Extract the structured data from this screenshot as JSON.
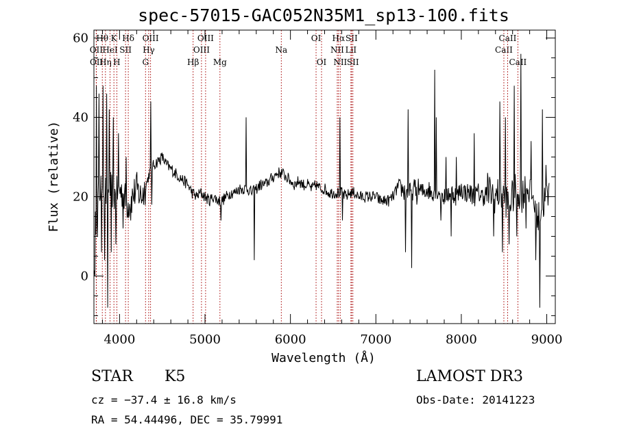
{
  "chart_data": {
    "type": "line",
    "title": "spec-57015-GAC052N35M1_sp13-100.fits",
    "xlabel": "Wavelength (Å)",
    "ylabel": "Flux (relative)",
    "xlim": [
      3700,
      9100
    ],
    "ylim": [
      -12,
      62
    ],
    "xticks": [
      4000,
      5000,
      6000,
      7000,
      8000,
      9000
    ],
    "yticks": [
      0,
      20,
      40,
      60
    ],
    "lines": [
      {
        "label": "Hθ",
        "wl": 3798,
        "row": 0
      },
      {
        "label": "OII",
        "wl": 3727,
        "row": 1
      },
      {
        "label": "OII",
        "wl": 3729,
        "row": 2
      },
      {
        "label": "Hη",
        "wl": 3835,
        "row": 2
      },
      {
        "label": "HeI",
        "wl": 3889,
        "row": 1
      },
      {
        "label": "K",
        "wl": 3934,
        "row": 0
      },
      {
        "label": "H",
        "wl": 3968,
        "row": 2
      },
      {
        "label": "SII",
        "wl": 4070,
        "row": 1
      },
      {
        "label": "Hδ",
        "wl": 4102,
        "row": 0
      },
      {
        "label": "G",
        "wl": 4304,
        "row": 2
      },
      {
        "label": "Hγ",
        "wl": 4341,
        "row": 1
      },
      {
        "label": "OIII",
        "wl": 4363,
        "row": 0
      },
      {
        "label": "Hβ",
        "wl": 4861,
        "row": 2
      },
      {
        "label": "OIII",
        "wl": 4959,
        "row": 1
      },
      {
        "label": "OIII",
        "wl": 5007,
        "row": 0
      },
      {
        "label": "Mg",
        "wl": 5175,
        "row": 2
      },
      {
        "label": "Na",
        "wl": 5893,
        "row": 1
      },
      {
        "label": "OI",
        "wl": 6300,
        "row": 0
      },
      {
        "label": "OI",
        "wl": 6364,
        "row": 2
      },
      {
        "label": "NII",
        "wl": 6548,
        "row": 1
      },
      {
        "label": "Hα",
        "wl": 6563,
        "row": 0
      },
      {
        "label": "NII",
        "wl": 6583,
        "row": 2
      },
      {
        "label": "LiI",
        "wl": 6708,
        "row": 1
      },
      {
        "label": "SII",
        "wl": 6716,
        "row": 0
      },
      {
        "label": "SII",
        "wl": 6731,
        "row": 2
      },
      {
        "label": "CaII",
        "wl": 8498,
        "row": 1
      },
      {
        "label": "CaII",
        "wl": 8542,
        "row": 0
      },
      {
        "label": "CaII",
        "wl": 8662,
        "row": 2
      }
    ],
    "spectrum_knots": [
      [
        3700,
        2
      ],
      [
        3720,
        14
      ],
      [
        3750,
        20
      ],
      [
        3800,
        24
      ],
      [
        3850,
        20
      ],
      [
        3900,
        22
      ],
      [
        3950,
        20
      ],
      [
        4000,
        22
      ],
      [
        4050,
        20
      ],
      [
        4100,
        18
      ],
      [
        4150,
        20
      ],
      [
        4200,
        22
      ],
      [
        4250,
        20
      ],
      [
        4300,
        22
      ],
      [
        4350,
        26
      ],
      [
        4400,
        28
      ],
      [
        4450,
        29
      ],
      [
        4500,
        30
      ],
      [
        4550,
        28
      ],
      [
        4600,
        27
      ],
      [
        4650,
        26
      ],
      [
        4700,
        25
      ],
      [
        4750,
        24
      ],
      [
        4800,
        23
      ],
      [
        4850,
        21
      ],
      [
        4900,
        20
      ],
      [
        4950,
        21
      ],
      [
        5000,
        20
      ],
      [
        5050,
        19
      ],
      [
        5100,
        20
      ],
      [
        5150,
        19
      ],
      [
        5200,
        19
      ],
      [
        5250,
        20
      ],
      [
        5300,
        21
      ],
      [
        5350,
        21
      ],
      [
        5400,
        22
      ],
      [
        5450,
        22
      ],
      [
        5500,
        22
      ],
      [
        5550,
        21
      ],
      [
        5600,
        22
      ],
      [
        5650,
        23
      ],
      [
        5700,
        23
      ],
      [
        5750,
        24
      ],
      [
        5800,
        25
      ],
      [
        5850,
        26
      ],
      [
        5900,
        26
      ],
      [
        5950,
        25
      ],
      [
        6000,
        24
      ],
      [
        6050,
        23
      ],
      [
        6100,
        24
      ],
      [
        6150,
        23
      ],
      [
        6200,
        23
      ],
      [
        6250,
        22
      ],
      [
        6300,
        23
      ],
      [
        6350,
        22
      ],
      [
        6400,
        22
      ],
      [
        6450,
        21
      ],
      [
        6500,
        21
      ],
      [
        6550,
        21
      ],
      [
        6600,
        21
      ],
      [
        6650,
        20
      ],
      [
        6700,
        21
      ],
      [
        6750,
        21
      ],
      [
        6800,
        20
      ],
      [
        6850,
        20
      ],
      [
        6900,
        20
      ],
      [
        6950,
        20
      ],
      [
        7000,
        20
      ],
      [
        7050,
        19
      ],
      [
        7100,
        19
      ],
      [
        7150,
        19
      ],
      [
        7200,
        20
      ],
      [
        7250,
        22
      ],
      [
        7300,
        22
      ],
      [
        7350,
        21
      ],
      [
        7400,
        21
      ],
      [
        7450,
        22
      ],
      [
        7500,
        22
      ],
      [
        7550,
        21
      ],
      [
        7600,
        22
      ],
      [
        7650,
        21
      ],
      [
        7700,
        22
      ],
      [
        7750,
        21
      ],
      [
        7800,
        20
      ],
      [
        7850,
        21
      ],
      [
        7900,
        21
      ],
      [
        7950,
        20
      ],
      [
        8000,
        22
      ],
      [
        8050,
        21
      ],
      [
        8100,
        21
      ],
      [
        8150,
        20
      ],
      [
        8200,
        21
      ],
      [
        8250,
        20
      ],
      [
        8300,
        21
      ],
      [
        8350,
        21
      ],
      [
        8400,
        20
      ],
      [
        8450,
        21
      ],
      [
        8500,
        20
      ],
      [
        8550,
        18
      ],
      [
        8600,
        20
      ],
      [
        8650,
        22
      ],
      [
        8700,
        20
      ],
      [
        8750,
        22
      ],
      [
        8800,
        22
      ],
      [
        8850,
        19
      ],
      [
        8900,
        14
      ],
      [
        8950,
        18
      ],
      [
        9000,
        20
      ],
      [
        9100,
        22
      ]
    ],
    "spectrum_spikes": [
      [
        3712,
        0
      ],
      [
        3730,
        48
      ],
      [
        3742,
        10
      ],
      [
        3760,
        46
      ],
      [
        3790,
        6
      ],
      [
        3810,
        48
      ],
      [
        3825,
        4
      ],
      [
        3848,
        46
      ],
      [
        3862,
        -8
      ],
      [
        3880,
        42
      ],
      [
        3905,
        6
      ],
      [
        3925,
        40
      ],
      [
        3960,
        8
      ],
      [
        3985,
        36
      ],
      [
        4040,
        12
      ],
      [
        4080,
        30
      ],
      [
        4130,
        14
      ],
      [
        4365,
        44
      ],
      [
        4380,
        18
      ],
      [
        5190,
        14
      ],
      [
        5480,
        40
      ],
      [
        5580,
        4
      ],
      [
        6580,
        40
      ],
      [
        6610,
        14
      ],
      [
        7350,
        6
      ],
      [
        7380,
        42
      ],
      [
        7420,
        2
      ],
      [
        7480,
        18
      ],
      [
        7690,
        52
      ],
      [
        7710,
        40
      ],
      [
        7760,
        14
      ],
      [
        7820,
        30
      ],
      [
        7880,
        10
      ],
      [
        7940,
        30
      ],
      [
        8150,
        36
      ],
      [
        8310,
        26
      ],
      [
        8380,
        10
      ],
      [
        8450,
        44
      ],
      [
        8480,
        6
      ],
      [
        8520,
        40
      ],
      [
        8560,
        8
      ],
      [
        8620,
        48
      ],
      [
        8650,
        10
      ],
      [
        8700,
        56
      ],
      [
        8760,
        12
      ],
      [
        8820,
        34
      ],
      [
        8870,
        4
      ],
      [
        8920,
        -8
      ],
      [
        8950,
        42
      ],
      [
        8990,
        28
      ]
    ]
  },
  "info": {
    "object_class": "STAR",
    "subclass": "K5",
    "survey": "LAMOST DR3",
    "cz": "cz = −37.4 ± 16.8 km/s",
    "obs_date": "Obs-Date: 20141223",
    "coords": "RA =  54.44496, DEC =  35.79991"
  }
}
